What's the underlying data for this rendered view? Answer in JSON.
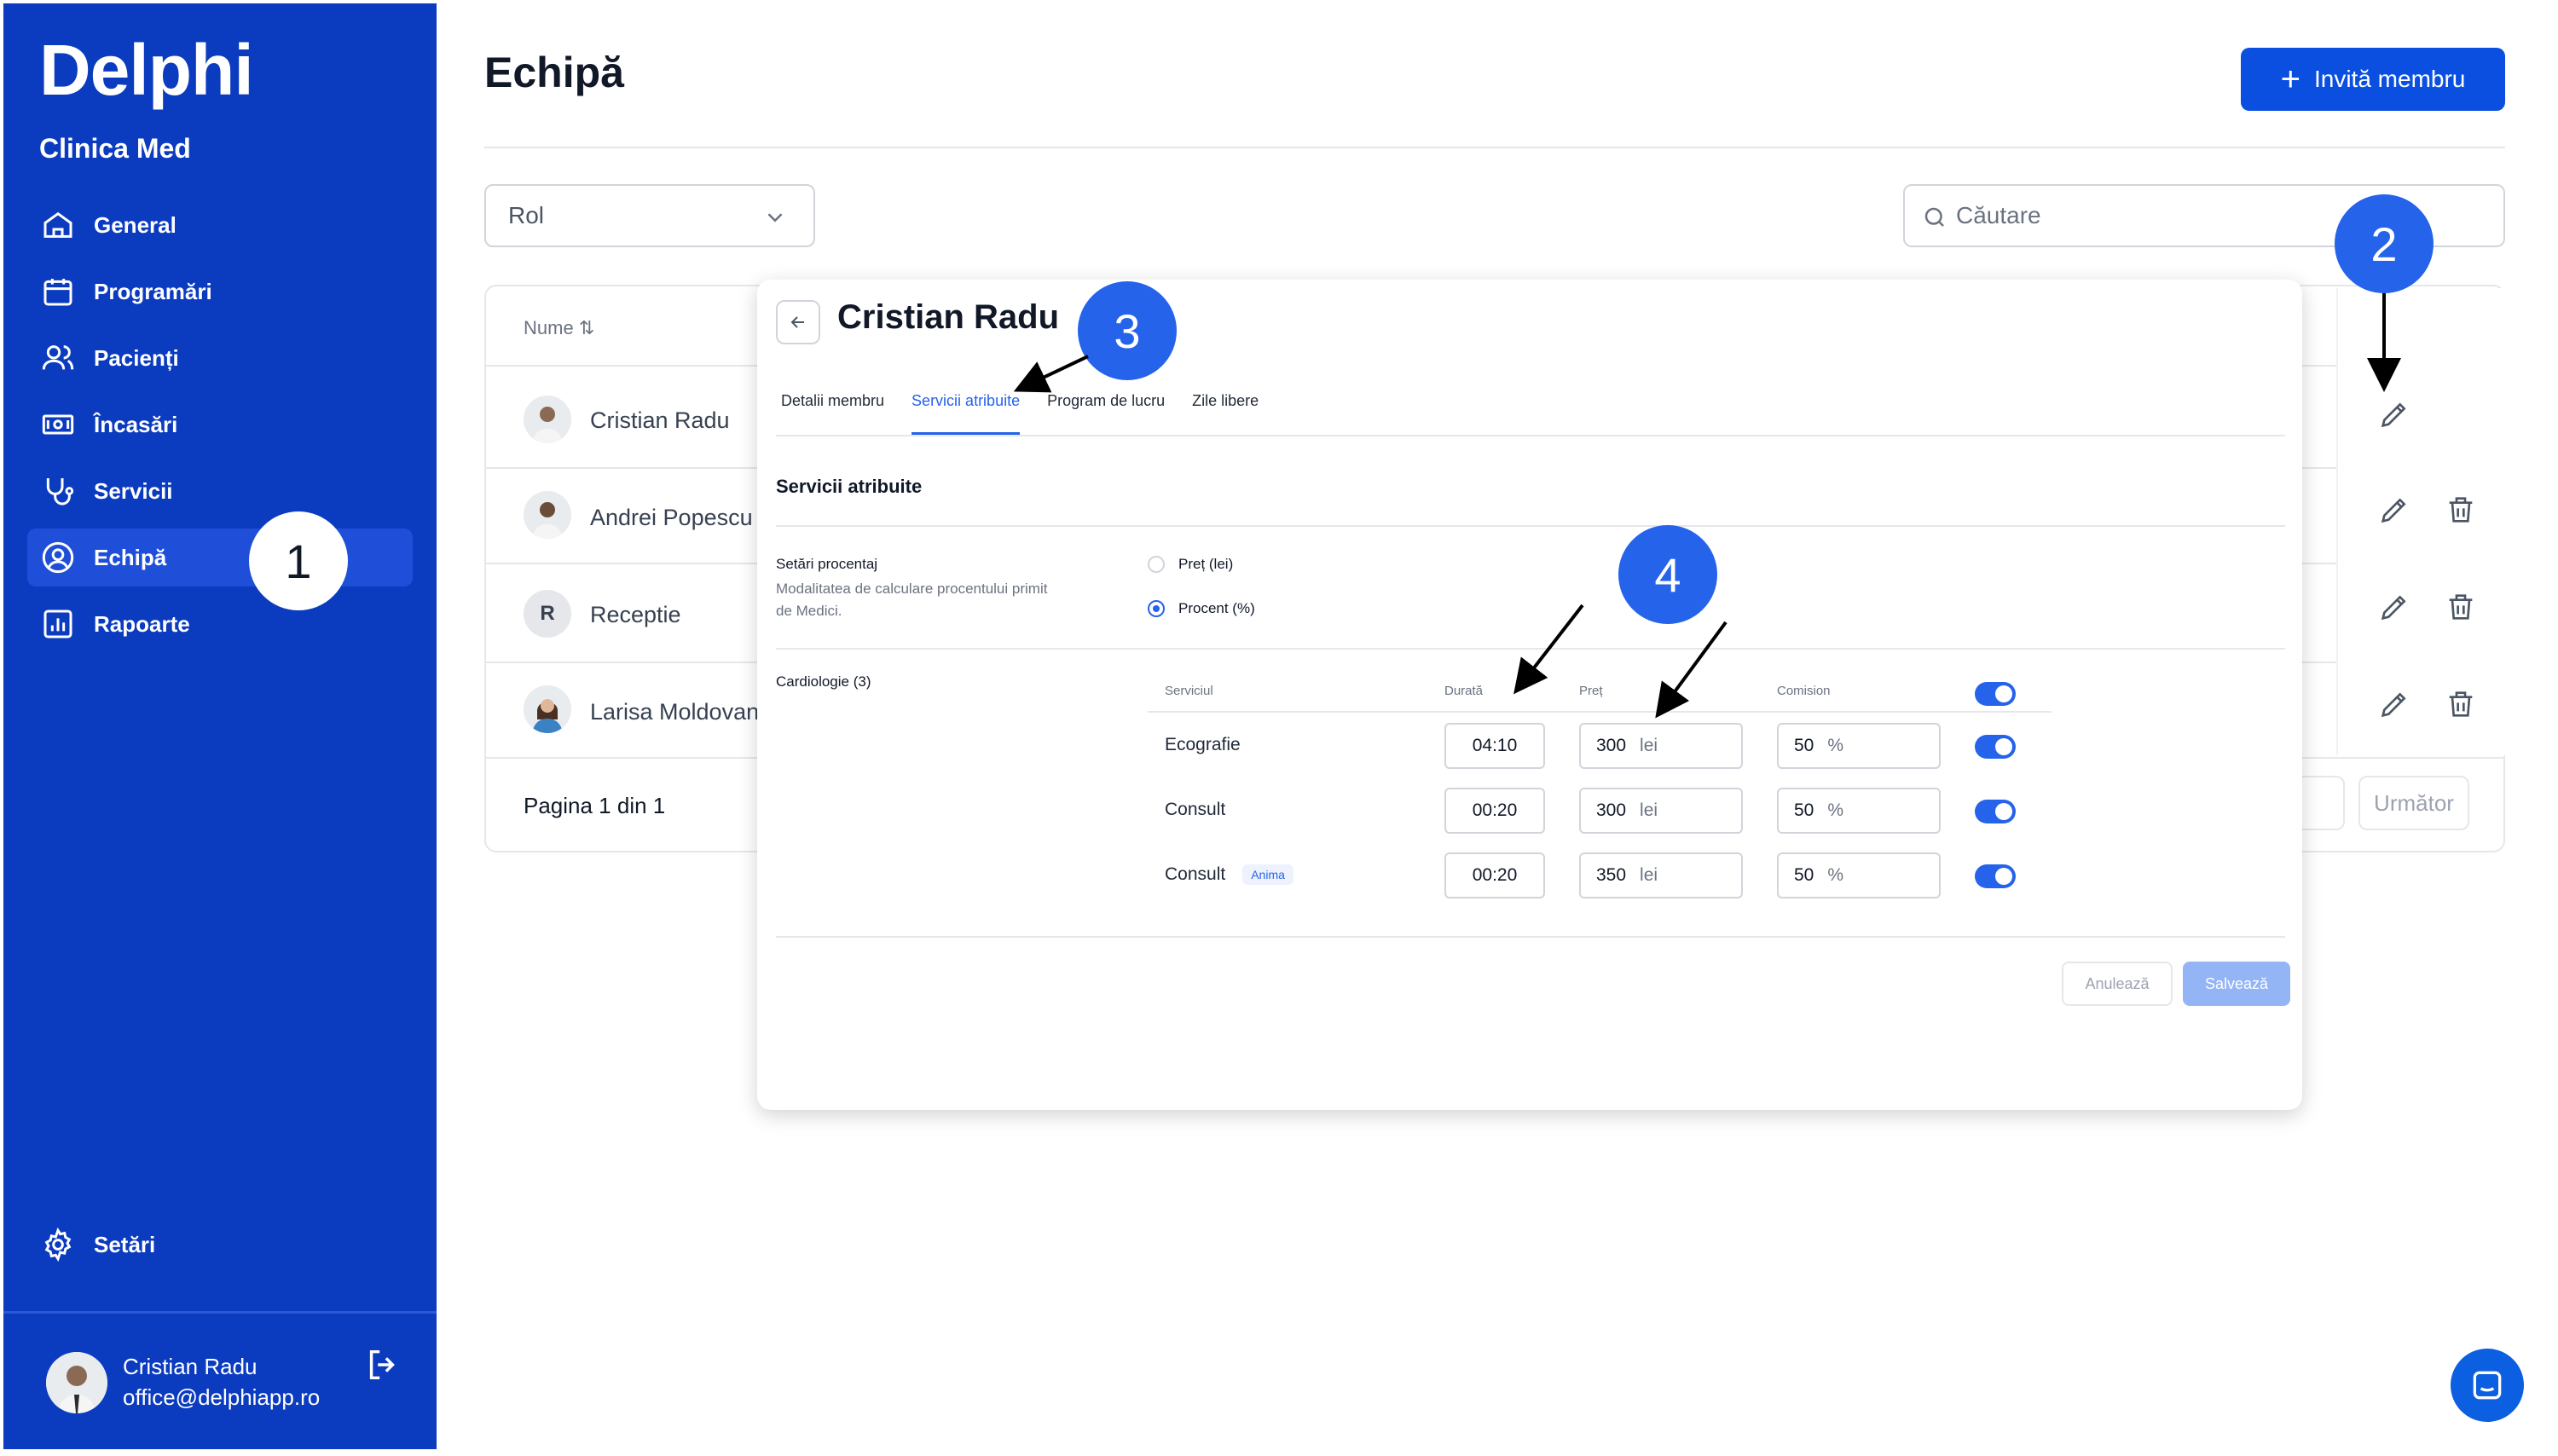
{
  "sidebar": {
    "brand": "Delphi",
    "clinic": "Clinica Med",
    "nav": [
      {
        "label": "General",
        "icon": "home-icon"
      },
      {
        "label": "Programări",
        "icon": "calendar-icon"
      },
      {
        "label": "Pacienți",
        "icon": "users-icon"
      },
      {
        "label": "Încasări",
        "icon": "cash-icon"
      },
      {
        "label": "Servicii",
        "icon": "stethoscope-icon"
      },
      {
        "label": "Echipă",
        "icon": "team-icon",
        "active": true
      },
      {
        "label": "Rapoarte",
        "icon": "chart-icon"
      }
    ],
    "settings_label": "Setări",
    "user": {
      "name": "Cristian Radu",
      "email": "office@delphiapp.ro"
    }
  },
  "header": {
    "title": "Echipă",
    "invite_label": "Invită membru"
  },
  "filters": {
    "role_placeholder": "Rol",
    "search_placeholder": "Căutare"
  },
  "table": {
    "name_header": "Nume",
    "rows": [
      {
        "name": "Cristian Radu",
        "avatar": "photo"
      },
      {
        "name": "Andrei Popescu",
        "avatar": "photo"
      },
      {
        "name": "Receptie",
        "avatar": "R"
      },
      {
        "name": "Larisa Moldovan",
        "avatar": "photo"
      }
    ],
    "pagination": "Pagina 1 din 1",
    "next_label": "Următor"
  },
  "modal": {
    "title": "Cristian Radu",
    "tabs": [
      "Detalii membru",
      "Servicii atribuite",
      "Program de lucru",
      "Zile libere"
    ],
    "active_tab": 1,
    "section_title": "Servicii atribuite",
    "percent_settings": {
      "label": "Setări procentaj",
      "description": "Modalitatea de calculare procentului primit de Medici.",
      "options": [
        "Preț (lei)",
        "Procent (%)"
      ],
      "selected": 1
    },
    "group": "Cardiologie (3)",
    "columns": [
      "Serviciul",
      "Durată",
      "Preț",
      "Comision"
    ],
    "services": [
      {
        "name": "Ecografie",
        "tag": "",
        "duration": "04:10",
        "price": "300",
        "price_unit": "lei",
        "commission": "50",
        "commission_unit": "%",
        "enabled": true
      },
      {
        "name": "Consult",
        "tag": "",
        "duration": "00:20",
        "price": "300",
        "price_unit": "lei",
        "commission": "50",
        "commission_unit": "%",
        "enabled": true
      },
      {
        "name": "Consult",
        "tag": "Anima",
        "duration": "00:20",
        "price": "350",
        "price_unit": "lei",
        "commission": "50",
        "commission_unit": "%",
        "enabled": true
      }
    ],
    "cancel_label": "Anulează",
    "save_label": "Salvează"
  },
  "callouts": [
    "1",
    "2",
    "3",
    "4"
  ],
  "colors": {
    "sidebar": "#0b3bbf",
    "accent": "#2563eb",
    "primary_button": "#0b4fe0"
  }
}
